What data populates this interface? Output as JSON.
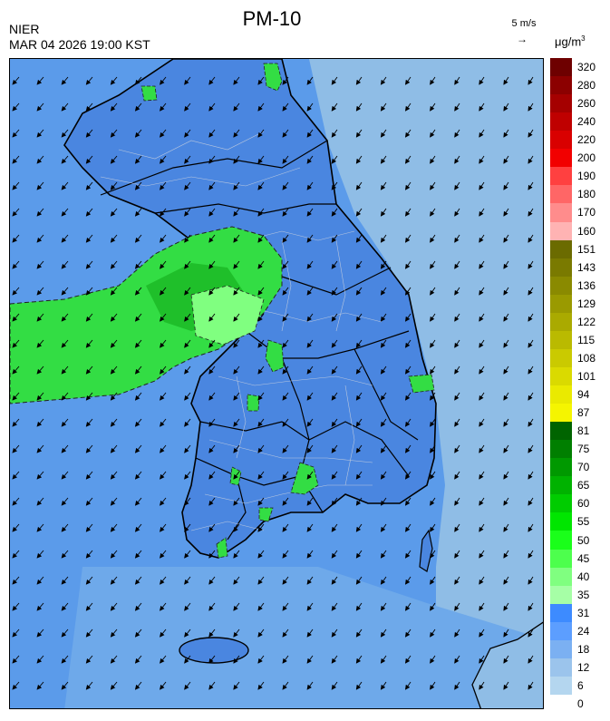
{
  "header": {
    "org": "NIER",
    "datetime": "MAR 04 2026 19:00 KST",
    "title": "PM-10",
    "vector_ref": "5 m/s",
    "unit": "μg/m",
    "unit_sup": "3"
  },
  "legend": {
    "labels": [
      "320",
      "280",
      "260",
      "240",
      "220",
      "200",
      "190",
      "180",
      "170",
      "160",
      "151",
      "143",
      "136",
      "129",
      "122",
      "115",
      "108",
      "101",
      "94",
      "87",
      "81",
      "75",
      "70",
      "65",
      "60",
      "55",
      "50",
      "45",
      "40",
      "35",
      "31",
      "24",
      "18",
      "12",
      "6",
      "0"
    ],
    "colors": [
      "#6e0000",
      "#8c0000",
      "#a50000",
      "#bf0000",
      "#d90000",
      "#f20000",
      "#ff4040",
      "#ff6666",
      "#ff8c8c",
      "#ffb3b3",
      "#6b6b00",
      "#7a7a00",
      "#8a8a00",
      "#9a9a00",
      "#aaaa00",
      "#baba00",
      "#caca00",
      "#dada00",
      "#eaea00",
      "#f5f500",
      "#006400",
      "#007f00",
      "#009900",
      "#00b200",
      "#00cc00",
      "#00e600",
      "#1aff1a",
      "#4dff4d",
      "#80ff80",
      "#a6ffa6",
      "#3d8bff",
      "#5c9eff",
      "#7bb0f2",
      "#9bc4ec",
      "#b4d6ef"
    ]
  },
  "map": {
    "sea_color": "#8fb8e6",
    "land_color": "#4f8fe8",
    "haze_color": "#33dd44",
    "haze_dark": "#22c22c",
    "wind_direction": "northeast to southwest"
  }
}
